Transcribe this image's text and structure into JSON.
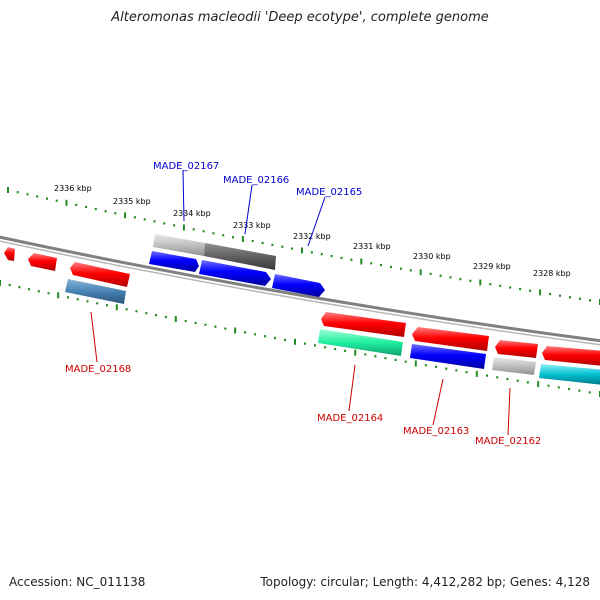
{
  "title": "Alteromonas macleodii 'Deep ecotype', complete genome",
  "footer": {
    "accession": "Accession: NC_011138",
    "summary": "Topology: circular; Length: 4,412,282 bp; Genes: 4,128"
  },
  "scale": {
    "ticks": [
      "2336 kbp",
      "2335 kbp",
      "2334 kbp",
      "2333 kbp",
      "2332 kbp",
      "2331 kbp",
      "2330 kbp",
      "2329 kbp",
      "2328 kbp"
    ],
    "major_color": "#228b22",
    "minor_color": "#228b22"
  },
  "backbone_color": "#808080",
  "gene_labels": [
    {
      "name": "MADE_02167",
      "color": "#0000cc"
    },
    {
      "name": "MADE_02166",
      "color": "#0000cc"
    },
    {
      "name": "MADE_02165",
      "color": "#0000cc"
    },
    {
      "name": "MADE_02168",
      "color": "#cc0000"
    },
    {
      "name": "MADE_02164",
      "color": "#cc0000"
    },
    {
      "name": "MADE_02163",
      "color": "#cc0000"
    },
    {
      "name": "MADE_02162",
      "color": "#cc0000"
    }
  ],
  "feature_colors": {
    "red": "#ff0000",
    "blue": "#0000ff",
    "light_gray": "#c0c0c0",
    "dark_gray": "#606060",
    "steel_blue": "#4682b4",
    "spring_green": "#20f0a0",
    "cyan": "#00c0d0"
  }
}
